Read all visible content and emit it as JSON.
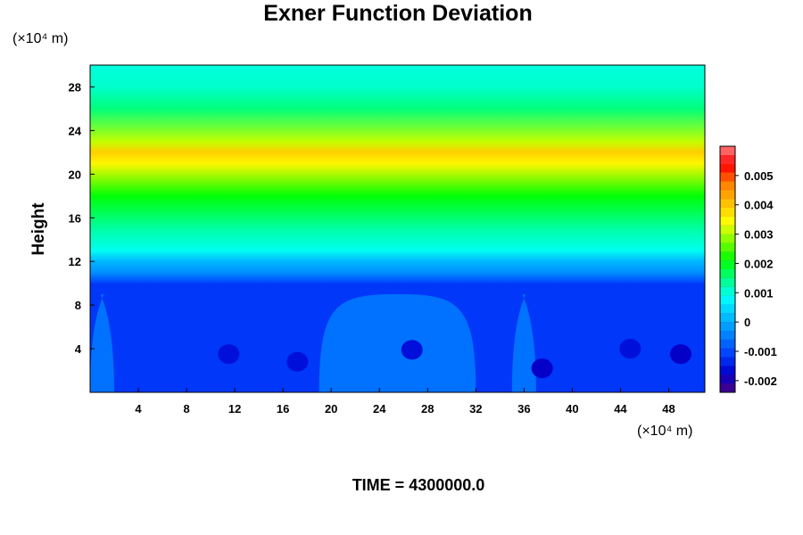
{
  "chart_data": {
    "type": "heatmap",
    "title": "Exner Function Deviation",
    "ylabel": "Height",
    "x_unit_label": "(×10⁴ m)",
    "y_unit_label": "(×10⁴ m)",
    "time_label": "TIME = 4300000.0",
    "xlim": [
      0,
      51
    ],
    "ylim": [
      0,
      30
    ],
    "x_ticks": [
      "4",
      "8",
      "12",
      "16",
      "20",
      "24",
      "28",
      "32",
      "36",
      "40",
      "44",
      "48"
    ],
    "x_tick_values": [
      4,
      8,
      12,
      16,
      20,
      24,
      28,
      32,
      36,
      40,
      44,
      48
    ],
    "y_ticks": [
      "4",
      "8",
      "12",
      "16",
      "20",
      "24",
      "28"
    ],
    "y_tick_values": [
      4,
      8,
      12,
      16,
      20,
      24,
      28
    ],
    "colorbar": {
      "min": -0.0024,
      "max": 0.006,
      "tick_labels": [
        "-0.002",
        "-0.001",
        "0",
        "0.001",
        "0.002",
        "0.003",
        "0.004",
        "0.005"
      ],
      "tick_values": [
        -0.002,
        -0.001,
        0,
        0.001,
        0.002,
        0.003,
        0.004,
        0.005
      ],
      "colors": [
        "#4b0082",
        "#0000cd",
        "#0040ff",
        "#0080ff",
        "#00bfff",
        "#00ffff",
        "#00ff80",
        "#00ff00",
        "#80ff00",
        "#ffff00",
        "#ffbf00",
        "#ff8000",
        "#ff0000",
        "#ff8080"
      ]
    },
    "vertical_profile": {
      "height": [
        0,
        10,
        11,
        12,
        13,
        15,
        18,
        21,
        22,
        23,
        26,
        28,
        30
      ],
      "value": [
        -0.0011,
        -0.0011,
        -0.0003,
        0.0001,
        0.0009,
        0.0013,
        0.0021,
        0.0035,
        0.0039,
        0.0031,
        0.0015,
        0.0011,
        0.001
      ]
    },
    "low_region": {
      "base_value": -0.0012,
      "lighter_value": -0.0006,
      "lighter_patches_x_ranges": [
        [
          0,
          2
        ],
        [
          19,
          32
        ],
        [
          35,
          37
        ]
      ],
      "darker_blobs": [
        {
          "x": 11.5,
          "y": 3.5,
          "value": -0.0016
        },
        {
          "x": 17.2,
          "y": 2.8,
          "value": -0.0016
        },
        {
          "x": 26.7,
          "y": 3.9,
          "value": -0.0016
        },
        {
          "x": 37.5,
          "y": 2.2,
          "value": -0.0018
        },
        {
          "x": 44.8,
          "y": 4.0,
          "value": -0.0016
        },
        {
          "x": 49,
          "y": 3.5,
          "value": -0.0018
        }
      ]
    }
  }
}
